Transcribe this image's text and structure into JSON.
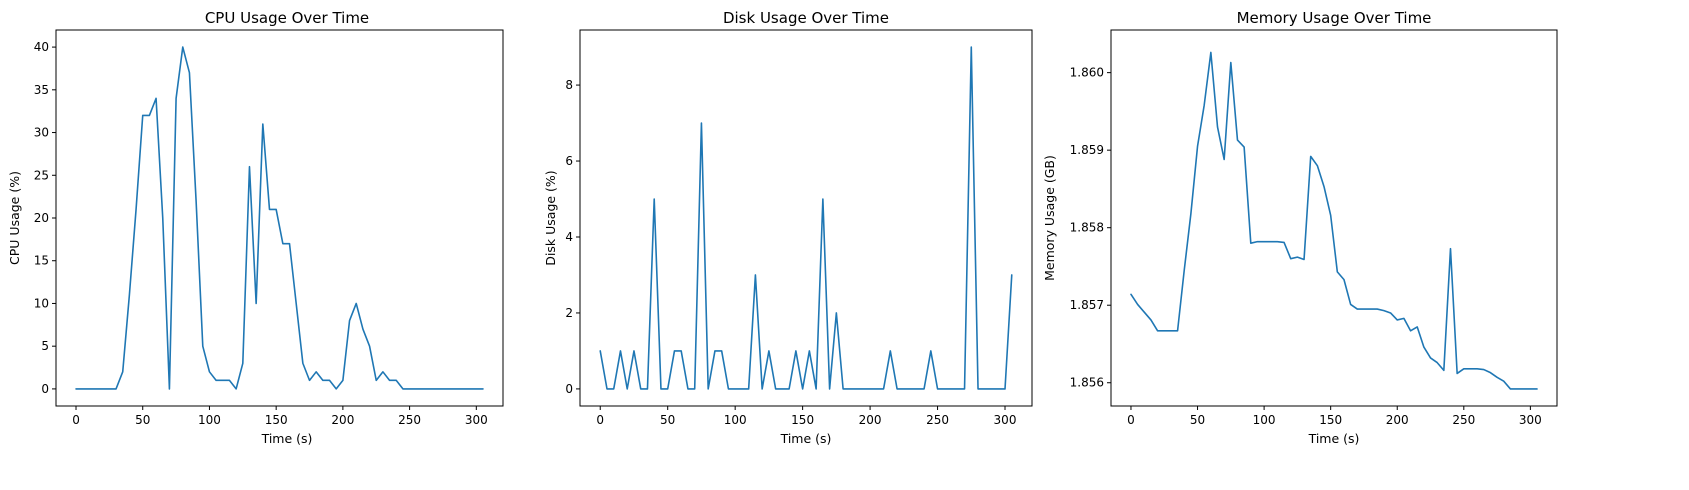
{
  "chart_data": [
    {
      "type": "line",
      "title": "CPU Usage Over Time",
      "xlabel": "Time (s)",
      "ylabel": "CPU Usage (%)",
      "xlim": [
        -15,
        320
      ],
      "ylim": [
        -2,
        42
      ],
      "xticks": [
        0,
        50,
        100,
        150,
        200,
        250,
        300
      ],
      "xtick_labels": [
        "0",
        "50",
        "100",
        "150",
        "200",
        "250",
        "300"
      ],
      "yticks": [
        0,
        5,
        10,
        15,
        20,
        25,
        30,
        35,
        40
      ],
      "ytick_labels": [
        "0",
        "5",
        "10",
        "15",
        "20",
        "25",
        "30",
        "35",
        "40"
      ],
      "color": "#1f77b4",
      "x": [
        0,
        5,
        10,
        15,
        20,
        25,
        30,
        35,
        40,
        45,
        50,
        55,
        60,
        65,
        70,
        75,
        80,
        85,
        90,
        95,
        100,
        105,
        110,
        115,
        120,
        125,
        130,
        135,
        140,
        145,
        150,
        155,
        160,
        165,
        170,
        175,
        180,
        185,
        190,
        195,
        200,
        205,
        210,
        215,
        220,
        225,
        230,
        235,
        240,
        245,
        250,
        255,
        260,
        265,
        270,
        275,
        280,
        285,
        290,
        295,
        300,
        305
      ],
      "y": [
        0,
        0,
        0,
        0,
        0,
        0,
        0,
        2,
        11,
        21,
        32,
        32,
        34,
        20,
        0,
        34,
        40,
        37,
        22,
        5,
        2,
        1,
        1,
        1,
        0,
        3,
        26,
        10,
        31,
        21,
        21,
        17,
        17,
        10,
        3,
        1,
        2,
        1,
        1,
        0,
        1,
        8,
        10,
        7,
        5,
        1,
        2,
        1,
        1,
        0,
        0,
        0,
        0,
        0,
        0,
        0,
        0,
        0,
        0,
        0,
        0,
        0
      ]
    },
    {
      "type": "line",
      "title": "Disk Usage Over Time",
      "xlabel": "Time (s)",
      "ylabel": "Disk Usage (%)",
      "xlim": [
        -15,
        320
      ],
      "ylim": [
        -0.45,
        9.45
      ],
      "xticks": [
        0,
        50,
        100,
        150,
        200,
        250,
        300
      ],
      "xtick_labels": [
        "0",
        "50",
        "100",
        "150",
        "200",
        "250",
        "300"
      ],
      "yticks": [
        0,
        2,
        4,
        6,
        8
      ],
      "ytick_labels": [
        "0",
        "2",
        "4",
        "6",
        "8"
      ],
      "color": "#1f77b4",
      "x": [
        0,
        5,
        10,
        15,
        20,
        25,
        30,
        35,
        40,
        45,
        50,
        55,
        60,
        65,
        70,
        75,
        80,
        85,
        90,
        95,
        100,
        105,
        110,
        115,
        120,
        125,
        130,
        135,
        140,
        145,
        150,
        155,
        160,
        165,
        170,
        175,
        180,
        185,
        190,
        195,
        200,
        205,
        210,
        215,
        220,
        225,
        230,
        235,
        240,
        245,
        250,
        255,
        260,
        265,
        270,
        275,
        280,
        285,
        290,
        295,
        300,
        305
      ],
      "y": [
        1,
        0,
        0,
        1,
        0,
        1,
        0,
        0,
        5,
        0,
        0,
        1,
        1,
        0,
        0,
        7,
        0,
        1,
        1,
        0,
        0,
        0,
        0,
        3,
        0,
        1,
        0,
        0,
        0,
        1,
        0,
        1,
        0,
        5,
        0,
        2,
        0,
        0,
        0,
        0,
        0,
        0,
        0,
        1,
        0,
        0,
        0,
        0,
        0,
        1,
        0,
        0,
        0,
        0,
        0,
        9,
        0,
        0,
        0,
        0,
        0,
        3
      ]
    },
    {
      "type": "line",
      "title": "Memory Usage Over Time",
      "xlabel": "Time (s)",
      "ylabel": "Memory Usage (GB)",
      "xlim": [
        -15,
        320
      ],
      "ylim": [
        1.8557,
        1.86055
      ],
      "xticks": [
        0,
        50,
        100,
        150,
        200,
        250,
        300
      ],
      "xtick_labels": [
        "0",
        "50",
        "100",
        "150",
        "200",
        "250",
        "300"
      ],
      "yticks": [
        1.856,
        1.857,
        1.858,
        1.859,
        1.86
      ],
      "ytick_labels": [
        "1.856",
        "1.857",
        "1.858",
        "1.859",
        "1.860"
      ],
      "color": "#1f77b4",
      "x": [
        0,
        5,
        10,
        15,
        20,
        25,
        30,
        35,
        40,
        45,
        50,
        55,
        60,
        65,
        70,
        75,
        80,
        85,
        90,
        95,
        100,
        105,
        110,
        115,
        120,
        125,
        130,
        135,
        140,
        145,
        150,
        155,
        160,
        165,
        170,
        175,
        180,
        185,
        190,
        195,
        200,
        205,
        210,
        215,
        220,
        225,
        230,
        235,
        240,
        245,
        250,
        255,
        260,
        265,
        270,
        275,
        280,
        285,
        290,
        295,
        300,
        305
      ],
      "y": [
        1.85714,
        1.85701,
        1.85691,
        1.85681,
        1.85667,
        1.85667,
        1.85667,
        1.85667,
        1.85745,
        1.85818,
        1.85905,
        1.85958,
        1.86026,
        1.8593,
        1.85888,
        1.86013,
        1.85913,
        1.85904,
        1.8578,
        1.85782,
        1.85782,
        1.85782,
        1.85782,
        1.85781,
        1.8576,
        1.85762,
        1.85759,
        1.85892,
        1.8588,
        1.85853,
        1.85816,
        1.85743,
        1.85733,
        1.85701,
        1.85695,
        1.85695,
        1.85695,
        1.85695,
        1.85693,
        1.8569,
        1.85681,
        1.85683,
        1.85667,
        1.85672,
        1.85646,
        1.85632,
        1.85626,
        1.85616,
        1.85773,
        1.85612,
        1.85618,
        1.85618,
        1.85618,
        1.85617,
        1.85613,
        1.85607,
        1.85602,
        1.85592,
        1.85592,
        1.85592,
        1.85592,
        1.85592
      ]
    }
  ]
}
